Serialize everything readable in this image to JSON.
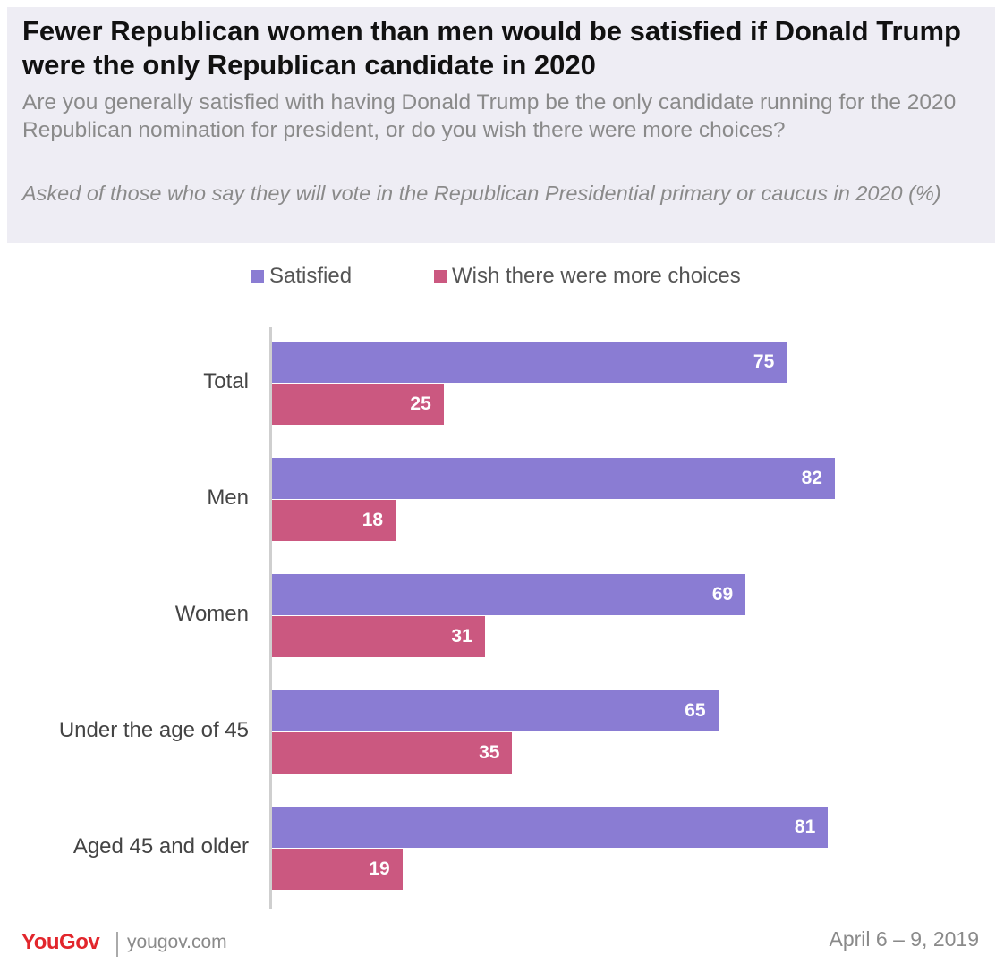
{
  "header": {
    "title": "Fewer Republican women than men would be satisfied if Donald Trump were the only Republican candidate in 2020",
    "subtitle": "Are you generally satisfied with having Donald Trump be the only candidate running for the 2020 Republican nomination for president, or do you wish there were more choices?",
    "note": "Asked of those who say they will vote in the Republican Presidential primary or caucus in 2020 (%)"
  },
  "chart_data": {
    "type": "bar",
    "orientation": "horizontal",
    "categories": [
      "Total",
      "Men",
      "Women",
      "Under the age of 45",
      "Aged 45 and older"
    ],
    "series": [
      {
        "name": "Satisfied",
        "color": "#8a7cd3",
        "values": [
          75,
          82,
          69,
          65,
          81
        ]
      },
      {
        "name": "Wish there were more choices",
        "color": "#cb5880",
        "values": [
          25,
          18,
          31,
          35,
          19
        ]
      }
    ],
    "xlim": [
      0,
      100
    ],
    "legend_position": "top",
    "grid": false,
    "data_labels": true
  },
  "footer": {
    "logo": "YouGov",
    "url": "yougov.com",
    "date": "April 6 – 9, 2019"
  }
}
